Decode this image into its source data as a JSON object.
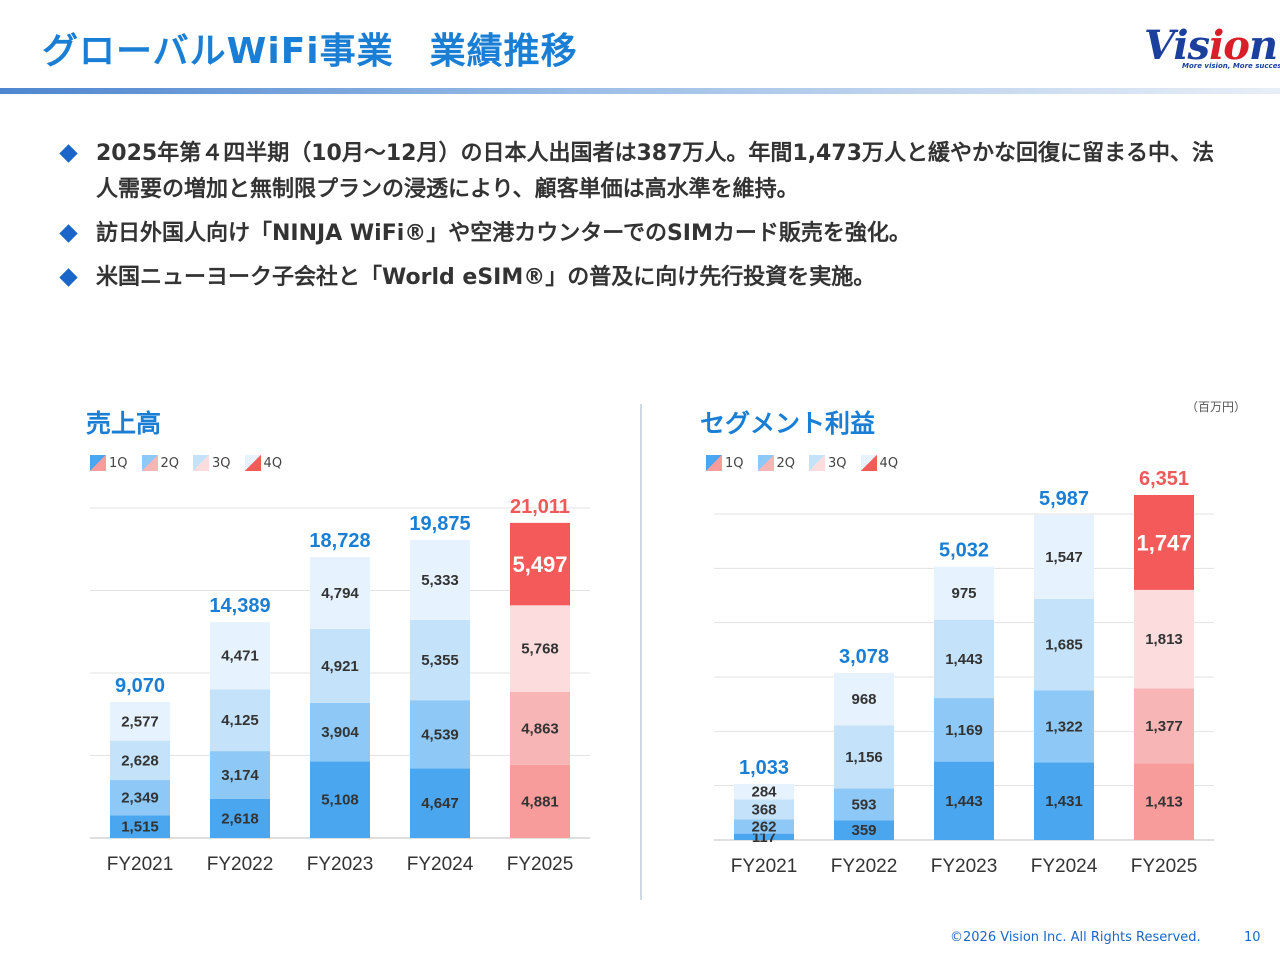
{
  "header": {
    "title_part1": "グローバルWiFi事業",
    "title_part2": "業績推移",
    "logo_text_v": "V",
    "logo_text_is": "is",
    "logo_text_io": "io",
    "logo_text_n": "n",
    "logo_tagline": "More vision, More success."
  },
  "bullets": [
    "2025年第４四半期（10月～12月）の日本人出国者は387万人。年間1,473万人と緩やかな回復に留まる中、法人需要の増加と無制限プランの浸透により、顧客単価は高水準を維持。",
    "訪日外国人向け「NINJA WiFi®」や空港カウンターでのSIMカード販売を強化。",
    "米国ニューヨーク子会社と「World eSIM®」の普及に向け先行投資を実施。"
  ],
  "unit_label": "（百万円）",
  "footer": {
    "copyright": "©2026 Vision Inc. All Rights Reserved.",
    "page": "10"
  },
  "colors": {
    "title_blue": "#1a7fd4",
    "total_red": "#ee5a5a",
    "q1": "#4aa6ee",
    "q2": "#8dc8f6",
    "q3": "#c4e2fa",
    "q4": "#e6f2fd",
    "r_q1": "#f79b9b",
    "r_q2": "#f8b5b5",
    "r_q3": "#fcdcdc",
    "r_q4": "#f55a5a"
  },
  "chart_data": [
    {
      "type": "bar",
      "stacked": true,
      "title": "売上高",
      "legend": [
        "1Q",
        "2Q",
        "3Q",
        "4Q"
      ],
      "categories": [
        "FY2021",
        "FY2022",
        "FY2023",
        "FY2024",
        "FY2025"
      ],
      "series": [
        {
          "name": "1Q",
          "values": [
            1515,
            2618,
            5108,
            4647,
            4881
          ]
        },
        {
          "name": "2Q",
          "values": [
            2349,
            3174,
            3904,
            4539,
            4863
          ]
        },
        {
          "name": "3Q",
          "values": [
            2628,
            4125,
            4921,
            5355,
            5768
          ]
        },
        {
          "name": "4Q",
          "values": [
            2577,
            4471,
            4794,
            5333,
            5497
          ]
        }
      ],
      "value_labels": [
        [
          "1,515",
          "2,349",
          "2,628",
          "2,577"
        ],
        [
          "2,618",
          "3,174",
          "4,125",
          "4,471"
        ],
        [
          "5,108",
          "3,904",
          "4,921",
          "4,794"
        ],
        [
          "4,647",
          "4,539",
          "5,355",
          "5,333"
        ],
        [
          "4,881",
          "4,863",
          "5,768",
          "5,497"
        ]
      ],
      "totals": [
        9070,
        14389,
        18728,
        19875,
        21011
      ],
      "total_labels": [
        "9,070",
        "14,389",
        "18,728",
        "19,875",
        "21,011"
      ],
      "ylim": [
        0,
        22000
      ],
      "gridlines": [
        0,
        5500,
        11000,
        16500,
        22000
      ],
      "highlight_category": "FY2025"
    },
    {
      "type": "bar",
      "stacked": true,
      "title": "セグメント利益",
      "legend": [
        "1Q",
        "2Q",
        "3Q",
        "4Q"
      ],
      "categories": [
        "FY2021",
        "FY2022",
        "FY2023",
        "FY2024",
        "FY2025"
      ],
      "series": [
        {
          "name": "1Q",
          "values": [
            117,
            359,
            1443,
            1431,
            1413
          ]
        },
        {
          "name": "2Q",
          "values": [
            262,
            593,
            1169,
            1322,
            1377
          ]
        },
        {
          "name": "3Q",
          "values": [
            368,
            1156,
            1443,
            1685,
            1813
          ]
        },
        {
          "name": "4Q",
          "values": [
            284,
            968,
            975,
            1547,
            1747
          ]
        }
      ],
      "value_labels": [
        [
          "117",
          "262",
          "368",
          "284"
        ],
        [
          "359",
          "593",
          "1,156",
          "968"
        ],
        [
          "1,443",
          "1,169",
          "1,443",
          "975"
        ],
        [
          "1,431",
          "1,322",
          "1,685",
          "1,547"
        ],
        [
          "1,413",
          "1,377",
          "1,813",
          "1,747"
        ]
      ],
      "totals": [
        1033,
        3078,
        5032,
        5987,
        6351
      ],
      "total_labels": [
        "1,033",
        "3,078",
        "5,032",
        "5,987",
        "6,351"
      ],
      "ylim": [
        0,
        6000
      ],
      "gridlines": [
        0,
        1000,
        2000,
        3000,
        4000,
        5000,
        6000
      ],
      "highlight_category": "FY2025"
    }
  ]
}
